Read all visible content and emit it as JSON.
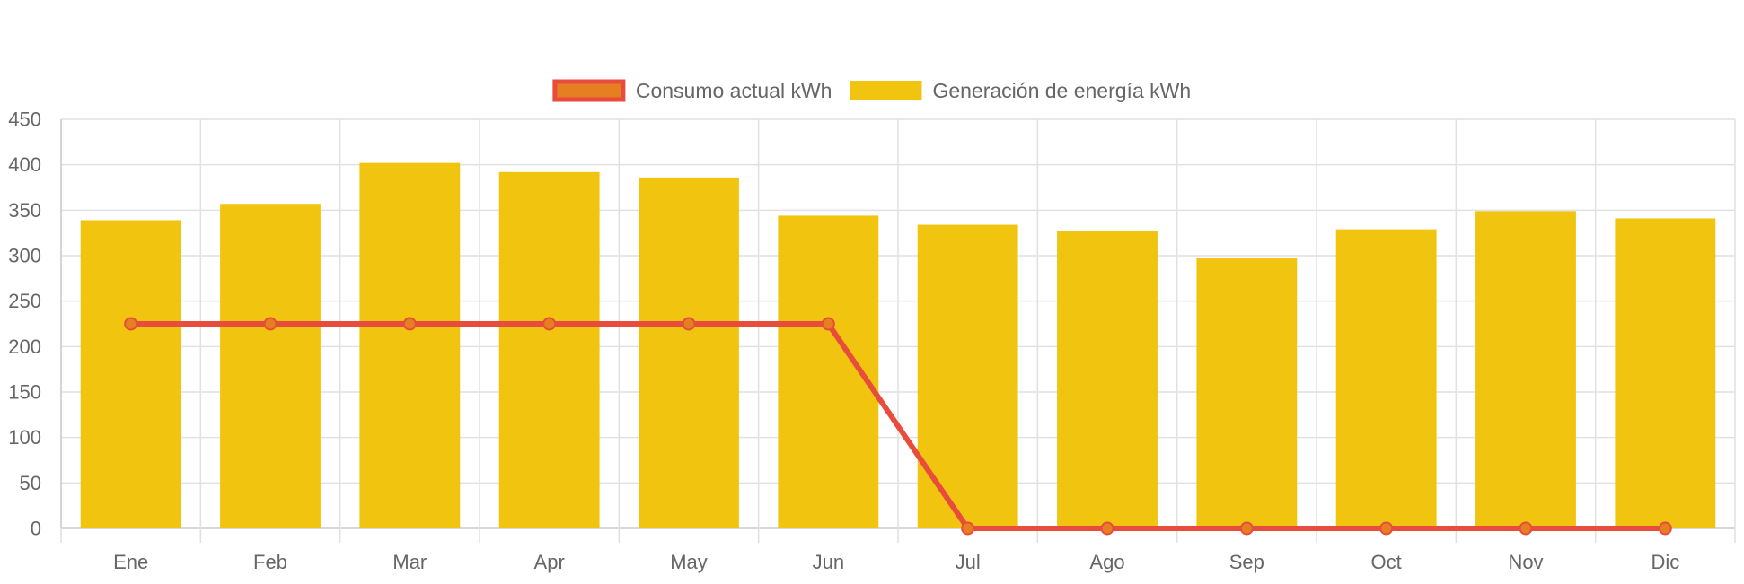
{
  "chart_data": {
    "type": "bar",
    "categories": [
      "Ene",
      "Feb",
      "Mar",
      "Apr",
      "May",
      "Jun",
      "Jul",
      "Ago",
      "Sep",
      "Oct",
      "Nov",
      "Dic"
    ],
    "series": [
      {
        "name": "Consumo actual kWh",
        "render": "line",
        "values": [
          225,
          225,
          225,
          225,
          225,
          225,
          0,
          0,
          0,
          0,
          0,
          0
        ],
        "color": "#e74c3c",
        "point_color": "#e67e22"
      },
      {
        "name": "Generación de energía kWh",
        "render": "bar",
        "values": [
          339,
          357,
          402,
          392,
          386,
          344,
          334,
          327,
          297,
          329,
          349,
          341
        ],
        "color": "#f1c40f"
      }
    ],
    "ylim": [
      0,
      450
    ],
    "yticks": [
      0,
      50,
      100,
      150,
      200,
      250,
      300,
      350,
      400,
      450
    ],
    "title": "",
    "xlabel": "",
    "ylabel": "",
    "legend_position": "top",
    "grid": true,
    "grid_color": "#e1e1e1",
    "axis_color": "#cccccc",
    "text_color": "#666666"
  }
}
